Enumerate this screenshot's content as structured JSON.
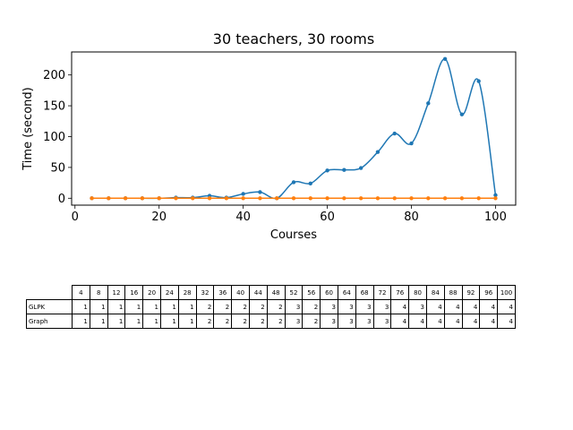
{
  "chart_data": {
    "type": "line",
    "title": "30 teachers, 30 rooms",
    "xlabel": "Courses",
    "ylabel": "Time (second)",
    "xlim": [
      -0.8,
      104.8
    ],
    "ylim": [
      -11.2,
      237.3
    ],
    "xticks": [
      0,
      20,
      40,
      60,
      80,
      100
    ],
    "yticks": [
      0,
      50,
      100,
      150,
      200
    ],
    "grid": false,
    "x": [
      4,
      8,
      12,
      16,
      20,
      24,
      28,
      32,
      36,
      40,
      44,
      48,
      52,
      56,
      60,
      64,
      68,
      72,
      76,
      80,
      84,
      88,
      92,
      96,
      100
    ],
    "series": [
      {
        "color": "#1f77b4",
        "values": [
          0,
          0,
          0,
          0,
          0,
          1,
          1,
          4,
          1,
          7,
          10,
          0,
          26,
          24,
          45,
          46,
          49,
          75,
          105,
          89,
          154,
          226,
          136,
          190,
          5
        ]
      },
      {
        "color": "#ff7f0e",
        "values": [
          0,
          0,
          0,
          0,
          0,
          0,
          0,
          0,
          0,
          0,
          0,
          0,
          0,
          0,
          0,
          0,
          0,
          0,
          0,
          0,
          0,
          0,
          0,
          0,
          0
        ]
      }
    ],
    "table": {
      "columns": [
        "4",
        "8",
        "12",
        "16",
        "20",
        "24",
        "28",
        "32",
        "36",
        "40",
        "44",
        "48",
        "52",
        "56",
        "60",
        "64",
        "68",
        "72",
        "76",
        "80",
        "84",
        "88",
        "92",
        "96",
        "100"
      ],
      "rows": [
        {
          "label": "GLPK",
          "values": [
            "1",
            "1",
            "1",
            "1",
            "1",
            "1",
            "1",
            "2",
            "2",
            "2",
            "2",
            "2",
            "3",
            "2",
            "3",
            "3",
            "3",
            "3",
            "4",
            "3",
            "4",
            "4",
            "4",
            "4",
            "4"
          ]
        },
        {
          "label": "Graph",
          "values": [
            "1",
            "1",
            "1",
            "1",
            "1",
            "1",
            "1",
            "2",
            "2",
            "2",
            "2",
            "2",
            "3",
            "2",
            "3",
            "3",
            "3",
            "3",
            "4",
            "4",
            "4",
            "4",
            "4",
            "4",
            "4"
          ]
        }
      ]
    }
  }
}
